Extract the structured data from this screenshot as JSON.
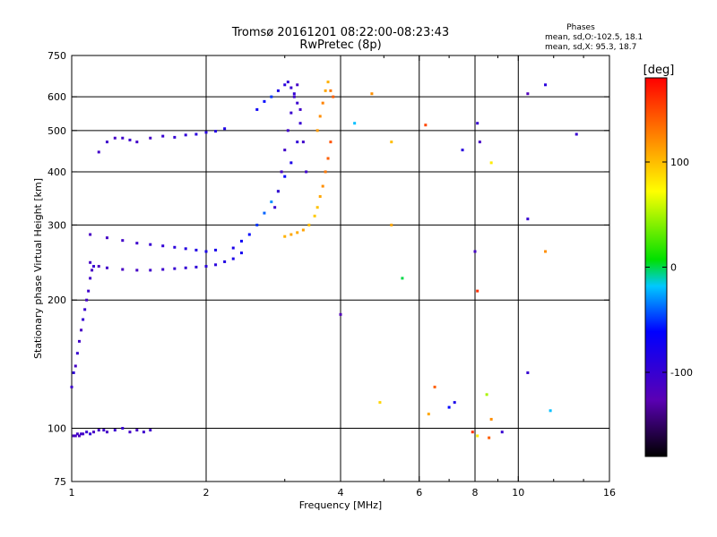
{
  "chart_data": {
    "type": "scatter",
    "title_line1": "Tromsø 20161201 08:22:00-08:23:43",
    "title_line2": "RwPretec (8p)",
    "stats_header": "Phases",
    "stats_line1": "mean, sd,O:-102.5, 18.1",
    "stats_line2": "mean, sd,X:  95.3, 18.7",
    "xlabel": "Frequency [MHz]",
    "ylabel": "Stationary phase Virtual Height [km]",
    "xscale": "log",
    "yscale": "log",
    "xlim": [
      1,
      16
    ],
    "ylim": [
      75,
      750
    ],
    "xticks": [
      1,
      2,
      4,
      6,
      8,
      10,
      16
    ],
    "xtick_labels": [
      "1",
      "2",
      "4",
      "6",
      "8",
      "10",
      "16"
    ],
    "xgrid": [
      2,
      4,
      6,
      8,
      10
    ],
    "xminor": [
      3,
      5,
      7,
      9,
      12,
      14
    ],
    "yticks": [
      75,
      100,
      200,
      300,
      400,
      500,
      600,
      750
    ],
    "ytick_labels": [
      "75",
      "100",
      "200",
      "300",
      "400",
      "500",
      "600",
      "750"
    ],
    "ygrid": [
      100,
      200,
      300,
      400,
      500,
      600
    ],
    "colorbar": {
      "label": "[deg]",
      "range": [
        -180,
        180
      ],
      "ticks": [
        100,
        0,
        -100
      ],
      "tick_labels": [
        "100",
        "0",
        "-100"
      ]
    },
    "series": [
      {
        "x": [
          1.01,
          1.02,
          1.03,
          1.04,
          1.05,
          1.06,
          1.08,
          1.1,
          1.12,
          1.15,
          1.18,
          1.2,
          1.25,
          1.3,
          1.35,
          1.4,
          1.45,
          1.5
        ],
        "y": [
          96,
          96,
          97,
          96,
          97,
          97,
          98,
          97,
          98,
          99,
          99,
          98,
          99,
          100,
          98,
          99,
          98,
          99
        ],
        "phase": [
          -110,
          -112,
          -108,
          -115,
          -105,
          -110,
          -100,
          -95,
          -112,
          -108,
          -105,
          -110,
          -102,
          -100,
          -108,
          -110,
          -104,
          -106
        ]
      },
      {
        "x": [
          1.0,
          1.01,
          1.02,
          1.03,
          1.04,
          1.05,
          1.06,
          1.07,
          1.08,
          1.09,
          1.1,
          1.11,
          1.12
        ],
        "y": [
          125,
          135,
          140,
          150,
          160,
          170,
          180,
          190,
          200,
          210,
          225,
          235,
          240
        ],
        "phase": [
          -105,
          -95,
          -110,
          -100,
          -108,
          -112,
          -98,
          -102,
          -110,
          -106,
          -108,
          -112,
          -100
        ]
      },
      {
        "x": [
          1.1,
          1.15,
          1.2,
          1.3,
          1.4,
          1.5,
          1.6,
          1.7,
          1.8,
          1.9,
          2.0,
          2.1,
          2.2,
          2.3,
          2.4
        ],
        "y": [
          245,
          240,
          238,
          236,
          235,
          235,
          236,
          237,
          238,
          239,
          240,
          242,
          246,
          250,
          258
        ],
        "phase": [
          -110,
          -115,
          -108,
          -112,
          -110,
          -106,
          -104,
          -100,
          -98,
          -95,
          -92,
          -90,
          -85,
          -80,
          -75
        ]
      },
      {
        "x": [
          1.1,
          1.2,
          1.3,
          1.4,
          1.5,
          1.6,
          1.7,
          1.8,
          1.9,
          2.0,
          2.1
        ],
        "y": [
          285,
          280,
          276,
          272,
          270,
          268,
          266,
          264,
          262,
          260,
          262
        ],
        "phase": [
          -112,
          -110,
          -108,
          -104,
          -100,
          -96,
          -92,
          -88,
          -84,
          -80,
          -78
        ]
      },
      {
        "x": [
          1.15,
          1.2,
          1.25,
          1.3,
          1.35,
          1.4,
          1.5,
          1.6,
          1.7,
          1.8,
          1.9,
          2.0,
          2.1,
          2.2
        ],
        "y": [
          445,
          470,
          480,
          480,
          475,
          470,
          480,
          485,
          482,
          488,
          490,
          495,
          498,
          505
        ],
        "phase": [
          -108,
          -105,
          -110,
          -106,
          -104,
          -108,
          -110,
          -100,
          -98,
          -95,
          -90,
          -88,
          -85,
          -82
        ]
      },
      {
        "x": [
          2.3,
          2.4,
          2.5,
          2.6,
          2.7,
          2.8,
          2.9,
          3.0,
          3.1,
          3.2,
          3.25
        ],
        "y": [
          265,
          275,
          285,
          300,
          320,
          340,
          360,
          390,
          420,
          470,
          520
        ],
        "phase": [
          -80,
          -70,
          -60,
          -50,
          -40,
          -30,
          -20,
          -60,
          -80,
          -95,
          -100
        ]
      },
      {
        "x": [
          2.6,
          2.7,
          2.8,
          2.9,
          3.0,
          3.05,
          3.1,
          3.15,
          3.2
        ],
        "y": [
          560,
          585,
          600,
          620,
          640,
          650,
          630,
          610,
          580
        ],
        "phase": [
          -70,
          -60,
          -50,
          -80,
          -90,
          -95,
          -100,
          -98,
          -102
        ]
      },
      {
        "x": [
          2.85,
          2.9,
          2.95,
          3.0,
          3.05,
          3.1,
          3.15,
          3.2,
          3.25,
          3.3,
          3.35
        ],
        "y": [
          330,
          360,
          400,
          450,
          500,
          550,
          600,
          640,
          560,
          470,
          400
        ],
        "phase": [
          -100,
          -105,
          -110,
          -108,
          -106,
          -102,
          -104,
          -110,
          -108,
          -106,
          -104
        ]
      },
      {
        "x": [
          3.0,
          3.1,
          3.2,
          3.3,
          3.4,
          3.5,
          3.55,
          3.6,
          3.65,
          3.7,
          3.75,
          3.8
        ],
        "y": [
          282,
          285,
          288,
          292,
          300,
          315,
          330,
          350,
          370,
          400,
          430,
          470
        ],
        "phase": [
          105,
          110,
          108,
          112,
          100,
          95,
          98,
          110,
          120,
          130,
          140,
          145
        ]
      },
      {
        "x": [
          3.55,
          3.6,
          3.65,
          3.7,
          3.75,
          3.8,
          3.85
        ],
        "y": [
          500,
          540,
          580,
          620,
          650,
          620,
          600
        ],
        "phase": [
          115,
          120,
          125,
          110,
          105,
          130,
          140
        ]
      },
      {
        "x": [
          4.3,
          4.7,
          5.2,
          6.2,
          7.5,
          8.1,
          8.2,
          8.7,
          10.5,
          11.5,
          13.5
        ],
        "y": [
          520,
          610,
          470,
          515,
          450,
          520,
          470,
          420,
          610,
          640,
          490
        ],
        "phase": [
          -20,
          120,
          100,
          150,
          -90,
          -100,
          -110,
          80,
          -120,
          -90,
          -100
        ]
      },
      {
        "x": [
          4.0,
          5.2,
          5.5,
          6.5,
          7.2,
          8.0,
          8.1,
          8.5,
          10.5,
          11.5
        ],
        "y": [
          185,
          300,
          225,
          125,
          115,
          260,
          210,
          120,
          310,
          260
        ],
        "phase": [
          -120,
          110,
          0,
          140,
          -80,
          -110,
          160,
          50,
          -100,
          120
        ]
      },
      {
        "x": [
          4.9,
          6.3,
          7.0,
          7.9,
          8.1,
          8.6,
          8.7,
          9.2,
          10.5,
          11.8
        ],
        "y": [
          115,
          108,
          112,
          98,
          96,
          95,
          105,
          98,
          135,
          110
        ],
        "phase": [
          90,
          110,
          -60,
          160,
          80,
          140,
          120,
          -100,
          -100,
          -20
        ]
      }
    ]
  }
}
